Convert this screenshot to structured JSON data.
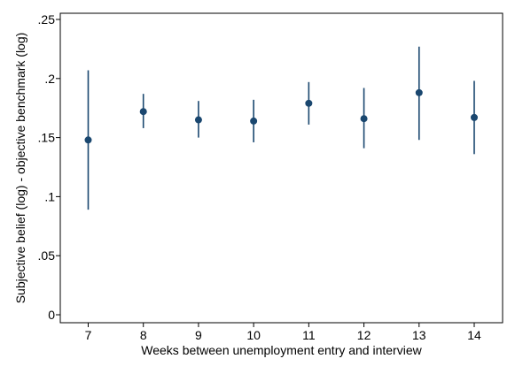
{
  "chart_data": {
    "type": "scatter",
    "style": "point estimates with confidence interval spikes",
    "xlabel": "Weeks between unemployment entry and interview",
    "ylabel": "Subjective belief (log) - objective benchmark (log)",
    "xlim": [
      6.5,
      14.5
    ],
    "ylim": [
      0,
      0.255
    ],
    "x_ticks": [
      7,
      8,
      9,
      10,
      11,
      12,
      13,
      14
    ],
    "x_tick_labels": [
      "7",
      "8",
      "9",
      "10",
      "11",
      "12",
      "13",
      "14"
    ],
    "y_ticks": [
      0,
      0.05,
      0.1,
      0.15,
      0.2,
      0.25
    ],
    "y_tick_labels": [
      "0",
      ".05",
      ".1",
      ".15",
      ".2",
      ".25"
    ],
    "grid": false,
    "legend": "none",
    "marker_color": "#1a476f",
    "points": [
      {
        "x": 7,
        "y": 0.148,
        "ci_low": 0.089,
        "ci_high": 0.207
      },
      {
        "x": 8,
        "y": 0.172,
        "ci_low": 0.158,
        "ci_high": 0.187
      },
      {
        "x": 9,
        "y": 0.165,
        "ci_low": 0.15,
        "ci_high": 0.181
      },
      {
        "x": 10,
        "y": 0.164,
        "ci_low": 0.146,
        "ci_high": 0.182
      },
      {
        "x": 11,
        "y": 0.179,
        "ci_low": 0.161,
        "ci_high": 0.197
      },
      {
        "x": 12,
        "y": 0.166,
        "ci_low": 0.141,
        "ci_high": 0.192
      },
      {
        "x": 13,
        "y": 0.188,
        "ci_low": 0.148,
        "ci_high": 0.227
      },
      {
        "x": 14,
        "y": 0.167,
        "ci_low": 0.136,
        "ci_high": 0.198
      }
    ]
  }
}
